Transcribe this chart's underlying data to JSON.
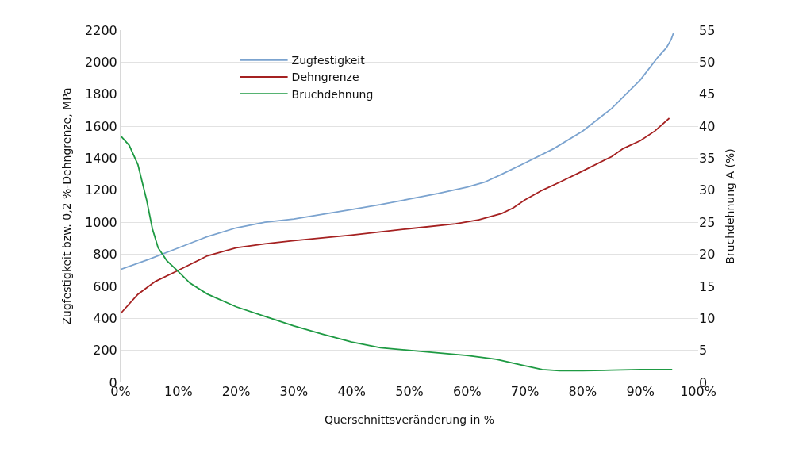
{
  "chart_data": {
    "type": "line",
    "xlabel": "Querschnittsveränderung in %",
    "ylabel": "Zugfestigkeit bzw. 0,2 %-Dehngrenze, MPa",
    "y2label": "Bruchdehnung A (%)",
    "xlim": [
      0,
      100
    ],
    "xticks": [
      {
        "value": 0,
        "label": "0%"
      },
      {
        "value": 10,
        "label": "10%"
      },
      {
        "value": 20,
        "label": "20%"
      },
      {
        "value": 30,
        "label": "30%"
      },
      {
        "value": 40,
        "label": "40%"
      },
      {
        "value": 50,
        "label": "50%"
      },
      {
        "value": 60,
        "label": "60%"
      },
      {
        "value": 70,
        "label": "70%"
      },
      {
        "value": 80,
        "label": "80%"
      },
      {
        "value": 90,
        "label": "90%"
      },
      {
        "value": 100,
        "label": "100%"
      }
    ],
    "ylim": [
      0,
      2200
    ],
    "yticks": [
      0,
      200,
      400,
      600,
      800,
      1000,
      1200,
      1400,
      1600,
      1800,
      2000,
      2200
    ],
    "y2lim": [
      0,
      55
    ],
    "y2ticks": [
      0,
      5,
      10,
      15,
      20,
      25,
      30,
      35,
      40,
      45,
      50,
      55
    ],
    "grid": "y",
    "legend": "top left",
    "marker": "none",
    "line_style": "solid",
    "series": [
      {
        "name": "Zugfestigkeit",
        "color": "#7ba3cf",
        "x": [
          0,
          5,
          10,
          15,
          20,
          25,
          30,
          35,
          40,
          45,
          50,
          55,
          60,
          63,
          66,
          70,
          75,
          80,
          85,
          90,
          93,
          94.5,
          95.3,
          95.7
        ],
        "values": [
          705,
          770,
          840,
          910,
          965,
          1000,
          1020,
          1050,
          1080,
          1110,
          1145,
          1180,
          1220,
          1250,
          1300,
          1370,
          1460,
          1570,
          1710,
          1890,
          2030,
          2090,
          2140,
          2180
        ]
      },
      {
        "name": "Dehngrenze",
        "color": "#a52121",
        "x": [
          0,
          3,
          6,
          10,
          15,
          20,
          25,
          30,
          40,
          50,
          58,
          62,
          66,
          68,
          70,
          73,
          76,
          80,
          85,
          87,
          90,
          92.5,
          95
        ],
        "values": [
          430,
          550,
          630,
          700,
          790,
          840,
          865,
          885,
          920,
          960,
          990,
          1015,
          1055,
          1090,
          1140,
          1200,
          1250,
          1320,
          1410,
          1460,
          1510,
          1570,
          1650
        ]
      },
      {
        "name": "Bruchdehnung",
        "color": "#1e9a43",
        "axis": "y2",
        "x": [
          0,
          1.5,
          3,
          4.5,
          5.5,
          6.5,
          8,
          10,
          12,
          15,
          20,
          25,
          30,
          35,
          40,
          45,
          50,
          55,
          60,
          65,
          70,
          73,
          76,
          80,
          85,
          90,
          95.5
        ],
        "values": [
          38.5,
          37,
          34,
          28.5,
          24,
          21,
          19,
          17.3,
          15.5,
          13.8,
          11.8,
          10.3,
          8.8,
          7.5,
          6.3,
          5.4,
          5,
          4.6,
          4.2,
          3.6,
          2.6,
          2,
          1.8,
          1.8,
          1.9,
          2,
          2
        ]
      }
    ]
  }
}
